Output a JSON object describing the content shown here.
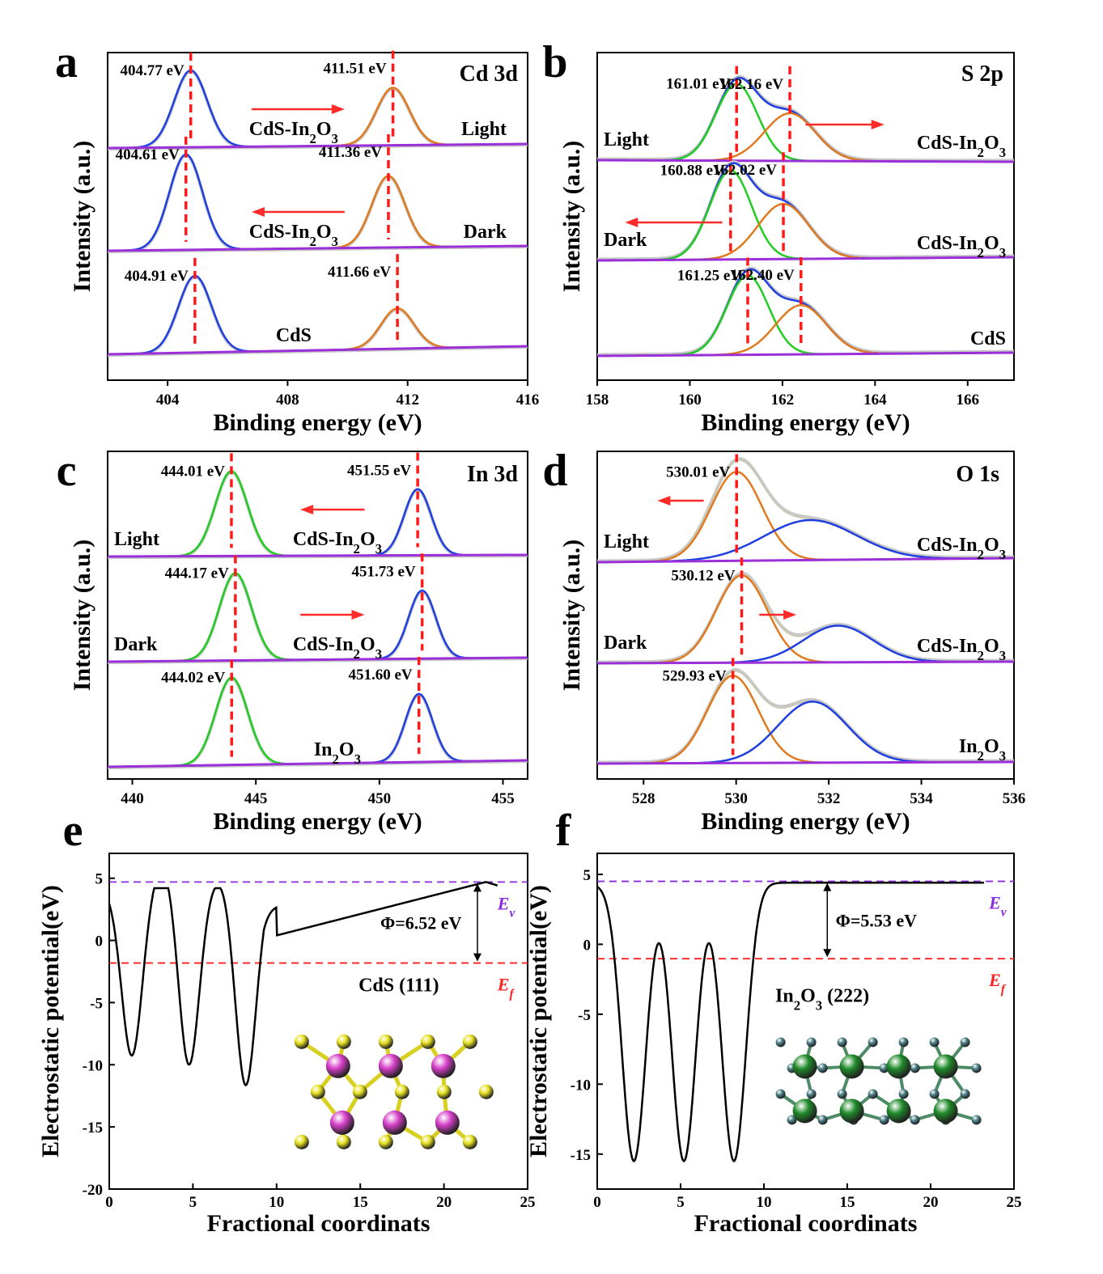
{
  "chart_data": [
    {
      "id": "a",
      "type": "line",
      "letter": "a",
      "title": "Cd 3d",
      "xlabel": "Binding energy (eV)",
      "ylabel": "Intensity (a.u.)",
      "xlim": [
        402,
        416
      ],
      "xticks": [
        404,
        408,
        412,
        416
      ],
      "series": [
        {
          "name": "CdS-In2O3",
          "condition": "Light",
          "peaks": [
            {
              "center": 404.77,
              "label": "404.77 eV",
              "color": "#1f3fe0"
            },
            {
              "center": 411.51,
              "label": "411.51 eV",
              "color": "#e07a1f"
            }
          ],
          "arrow": "right"
        },
        {
          "name": "CdS-In2O3",
          "condition": "Dark",
          "peaks": [
            {
              "center": 404.61,
              "label": "404.61 eV",
              "color": "#1f3fe0"
            },
            {
              "center": 411.36,
              "label": "411.36 eV",
              "color": "#e07a1f"
            }
          ],
          "arrow": "left"
        },
        {
          "name": "CdS",
          "condition": "",
          "peaks": [
            {
              "center": 404.91,
              "label": "404.91 eV",
              "color": "#1f3fe0"
            },
            {
              "center": 411.66,
              "label": "411.66 eV",
              "color": "#e07a1f"
            }
          ],
          "arrow": ""
        }
      ]
    },
    {
      "id": "b",
      "type": "line",
      "letter": "b",
      "title": "S 2p",
      "xlabel": "Binding energy (eV)",
      "ylabel": "Intensity (a.u.)",
      "xlim": [
        158,
        167
      ],
      "xticks": [
        158,
        160,
        162,
        164,
        166
      ],
      "series": [
        {
          "name": "CdS-In2O3",
          "condition": "Light",
          "peaks": [
            {
              "center": 161.01,
              "label": "161.01 eV",
              "color": "#22cc22"
            },
            {
              "center": 162.16,
              "label": "162.16 eV",
              "color": "#e07a1f"
            }
          ],
          "arrow": "right"
        },
        {
          "name": "CdS-In2O3",
          "condition": "Dark",
          "peaks": [
            {
              "center": 160.88,
              "label": "160.88 eV",
              "color": "#22cc22"
            },
            {
              "center": 162.02,
              "label": "162.02 eV",
              "color": "#e07a1f"
            }
          ],
          "arrow": "left"
        },
        {
          "name": "CdS",
          "condition": "",
          "peaks": [
            {
              "center": 161.25,
              "label": "161.25 eV",
              "color": "#22cc22"
            },
            {
              "center": 162.4,
              "label": "162.40 eV",
              "color": "#e07a1f"
            }
          ],
          "arrow": ""
        }
      ]
    },
    {
      "id": "c",
      "type": "line",
      "letter": "c",
      "title": "In 3d",
      "xlabel": "Binding energy (eV)",
      "ylabel": "Intensity (a.u.)",
      "xlim": [
        439,
        456
      ],
      "xticks": [
        440,
        445,
        450,
        455
      ],
      "series": [
        {
          "name": "CdS-In2O3",
          "condition": "Light",
          "peaks": [
            {
              "center": 444.01,
              "label": "444.01 eV",
              "color": "#22cc22"
            },
            {
              "center": 451.55,
              "label": "451.55 eV",
              "color": "#1f3fe0"
            }
          ],
          "arrow": "left"
        },
        {
          "name": "CdS-In2O3",
          "condition": "Dark",
          "peaks": [
            {
              "center": 444.17,
              "label": "444.17 eV",
              "color": "#22cc22"
            },
            {
              "center": 451.73,
              "label": "451.73 eV",
              "color": "#1f3fe0"
            }
          ],
          "arrow": "right"
        },
        {
          "name": "In2O3",
          "condition": "",
          "peaks": [
            {
              "center": 444.02,
              "label": "444.02 eV",
              "color": "#22cc22"
            },
            {
              "center": 451.6,
              "label": "451.60 eV",
              "color": "#1f3fe0"
            }
          ],
          "arrow": ""
        }
      ]
    },
    {
      "id": "d",
      "type": "line",
      "letter": "d",
      "title": "O 1s",
      "xlabel": "Binding energy (eV)",
      "ylabel": "Intensity (a.u.)",
      "xlim": [
        527,
        536
      ],
      "xticks": [
        528,
        530,
        532,
        534,
        536
      ],
      "series": [
        {
          "name": "CdS-In2O3",
          "condition": "Light",
          "peaks": [
            {
              "center": 530.01,
              "label": "530.01 eV",
              "color": "#e07a1f"
            }
          ],
          "arrow": "left"
        },
        {
          "name": "CdS-In2O3",
          "condition": "Dark",
          "peaks": [
            {
              "center": 530.12,
              "label": "530.12 eV",
              "color": "#e07a1f"
            }
          ],
          "arrow": "right"
        },
        {
          "name": "In2O3",
          "condition": "",
          "peaks": [
            {
              "center": 529.93,
              "label": "529.93 eV",
              "color": "#e07a1f"
            }
          ],
          "arrow": ""
        }
      ]
    },
    {
      "id": "e",
      "type": "line",
      "letter": "e",
      "xlabel": "Fractional coordinats",
      "ylabel": "Electrostatic potential(eV)",
      "xlim": [
        0,
        25
      ],
      "ylim": [
        -20,
        7
      ],
      "xticks": [
        0,
        5,
        10,
        15,
        20,
        25
      ],
      "yticks": [
        5,
        0,
        -5,
        -10,
        -15,
        -20
      ],
      "structure": "CdS (111)",
      "work_function": "Φ=6.52 eV",
      "Ev": 4.7,
      "Ef": -1.82,
      "Ev_label": "E",
      "Ev_sub": "v",
      "Ef_label": "E",
      "Ef_sub": "f"
    },
    {
      "id": "f",
      "type": "line",
      "letter": "f",
      "xlabel": "Fractional coordinats",
      "ylabel": "Electrostatic potential(eV)",
      "xlim": [
        0,
        25
      ],
      "ylim": [
        -17.5,
        6.5
      ],
      "xticks": [
        0,
        5,
        10,
        15,
        20,
        25
      ],
      "yticks": [
        5,
        0,
        -5,
        -10,
        -15
      ],
      "structure": "In2O3 (222)",
      "work_function": "Φ=5.53 eV",
      "Ev": 4.5,
      "Ef": -1.03,
      "Ev_label": "E",
      "Ev_sub": "v",
      "Ef_label": "E",
      "Ef_sub": "f"
    }
  ],
  "colors": {
    "baseline": "#9b30d9",
    "raw": "#c8c8c8",
    "dash": "#ff1a1a",
    "arrow": "#ff2a2a",
    "evline": "#8a2be2",
    "efline": "#ff2020",
    "cd_atom": "#d63fc8",
    "s_atom": "#e6e020",
    "in_atom": "#1f8a2a",
    "o_atom": "#4a7f86"
  }
}
